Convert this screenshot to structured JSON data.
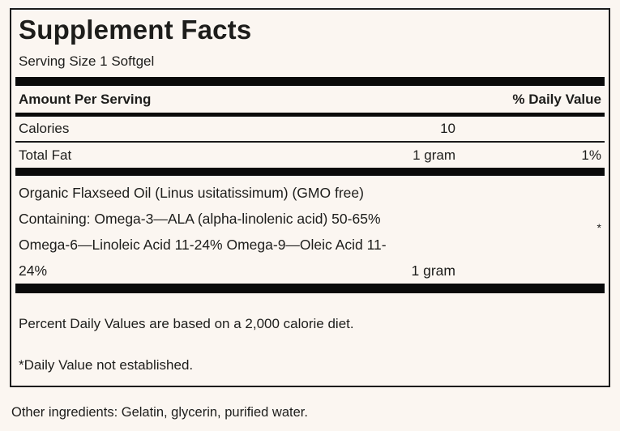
{
  "label": {
    "title": "Supplement Facts",
    "serving_size": "Serving Size 1 Softgel",
    "header": {
      "amount": "Amount Per Serving",
      "daily_value": "% Daily Value"
    },
    "rows": [
      {
        "name": "Calories",
        "amount": "10",
        "dv": ""
      },
      {
        "name": "Total Fat",
        "amount": "1 gram",
        "dv": "1%"
      }
    ],
    "ingredient_block": {
      "lines": [
        "Organic Flaxseed Oil (Linus usitatissimum) (GMO free)",
        "Containing: Omega-3—ALA (alpha-linolenic acid) 50-65%",
        "Omega-6—Linoleic Acid 11-24% Omega-9—Oleic Acid 11-"
      ],
      "last_line_left": "24%",
      "last_line_amount": "1 gram",
      "footnote_marker": "*"
    },
    "footnotes": [
      "Percent Daily Values are based on a 2,000 calorie diet.",
      "*Daily Value not established."
    ],
    "other_ingredients": "Other ingredients: Gelatin, glycerin, purified water."
  },
  "colors": {
    "background": "#fbf6f1",
    "text": "#1d1d1b",
    "bar": "#0a0a0a"
  }
}
